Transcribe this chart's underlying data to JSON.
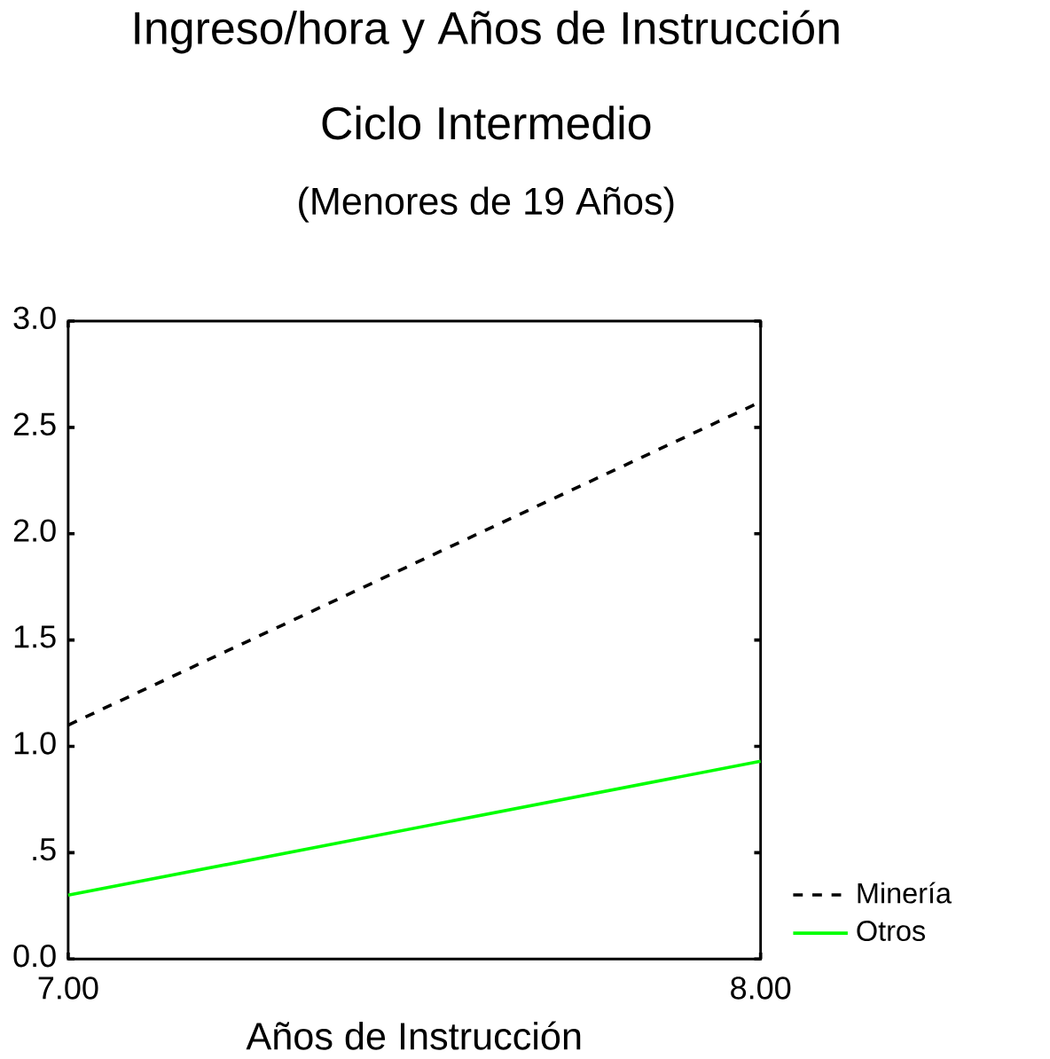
{
  "chart_data": {
    "type": "line",
    "title": "Ingreso/hora y Años de Instrucción",
    "subtitle": "Ciclo Intermedio",
    "annotations": [
      "(Menores de 19 Años)"
    ],
    "xlabel": "Años de Instrucción",
    "x": [
      7,
      8
    ],
    "xlim": [
      7,
      8
    ],
    "xticks": [
      {
        "value": 7,
        "label": "7.00"
      },
      {
        "value": 8,
        "label": "8.00"
      }
    ],
    "ylim": [
      0,
      3
    ],
    "yticks": [
      {
        "value": 0,
        "label": "0.0"
      },
      {
        "value": 0.5,
        "label": ".5"
      },
      {
        "value": 1,
        "label": "1.0"
      },
      {
        "value": 1.5,
        "label": "1.5"
      },
      {
        "value": 2,
        "label": "2.0"
      },
      {
        "value": 2.5,
        "label": "2.5"
      },
      {
        "value": 3,
        "label": "3.0"
      }
    ],
    "legend": "right",
    "grid": false,
    "series": [
      {
        "name": "Minería",
        "color": "#000000",
        "line_style": "dashed",
        "values": [
          1.1,
          2.62
        ]
      },
      {
        "name": "Otros",
        "color": "#00ff00",
        "line_style": "solid",
        "values": [
          0.3,
          0.93
        ]
      }
    ]
  }
}
